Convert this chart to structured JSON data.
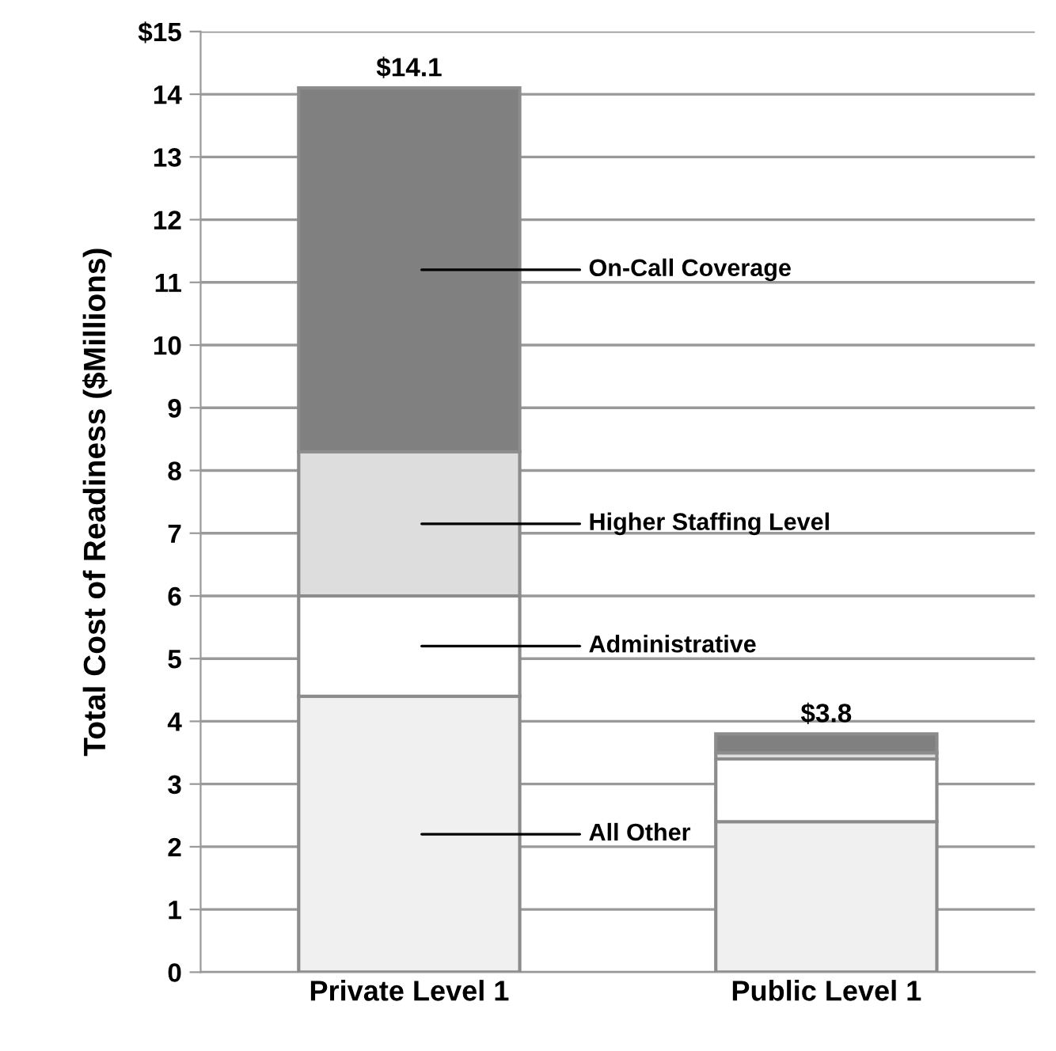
{
  "chart_data": {
    "type": "bar",
    "stacked": true,
    "ylabel": "Total Cost of Readiness ($Millions)",
    "categories": [
      "Private Level 1",
      "Public Level 1"
    ],
    "series": [
      {
        "name": "All Other",
        "color": "#f0f0f0",
        "values": [
          4.4,
          2.4
        ]
      },
      {
        "name": "Administrative",
        "color": "#ffffff",
        "values": [
          1.6,
          1.0
        ]
      },
      {
        "name": "Higher Staffing Level",
        "color": "#dddddd",
        "values": [
          2.3,
          0.1
        ]
      },
      {
        "name": "On-Call Coverage",
        "color": "#808080",
        "values": [
          5.8,
          0.3
        ]
      }
    ],
    "totals": [
      "$14.1",
      "$3.8"
    ],
    "ylim": [
      0,
      15
    ],
    "yticks": [
      0,
      1,
      2,
      3,
      4,
      5,
      6,
      7,
      8,
      9,
      10,
      11,
      12,
      13,
      14,
      {
        "value": 15,
        "label": "$15"
      }
    ],
    "grid": "y",
    "legend": false
  }
}
